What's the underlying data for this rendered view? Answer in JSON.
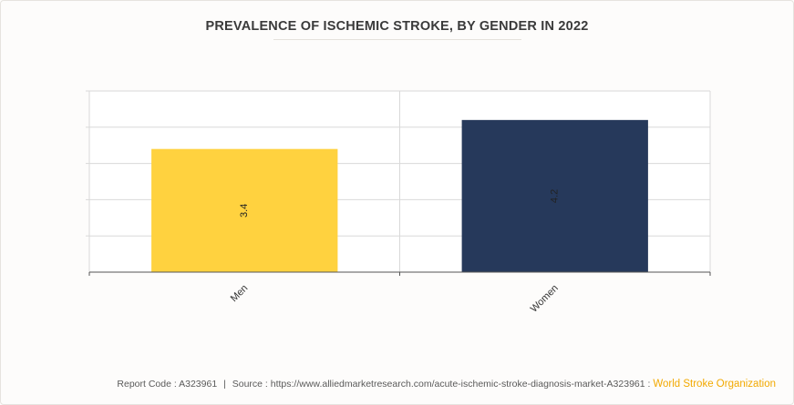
{
  "title": "PREVALENCE OF ISCHEMIC STROKE, BY GENDER IN 2022",
  "chart_data": {
    "type": "bar",
    "categories": [
      "Men",
      "Women"
    ],
    "values": [
      3.4,
      4.2
    ],
    "data_labels": [
      "3.4",
      "4.2"
    ],
    "colors": [
      "#ffd23f",
      "#26395b"
    ],
    "ylim": [
      0,
      5
    ],
    "y_tick_step": 1,
    "grid": true,
    "legend": "none",
    "xlabel": "",
    "ylabel": ""
  },
  "footer": {
    "report_code": "Report Code : A323961",
    "separator": "|",
    "source": "Source : https://www.alliedmarketresearch.com/acute-ischemic-stroke-diagnosis-market-A323961 :",
    "source_org": "World Stroke Organization"
  }
}
